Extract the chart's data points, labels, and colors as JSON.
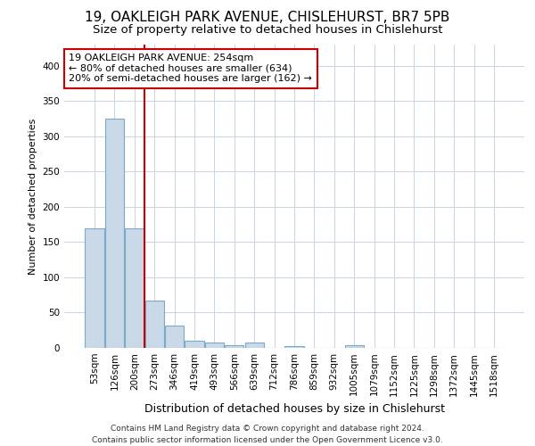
{
  "title": "19, OAKLEIGH PARK AVENUE, CHISLEHURST, BR7 5PB",
  "subtitle": "Size of property relative to detached houses in Chislehurst",
  "xlabel": "Distribution of detached houses by size in Chislehurst",
  "ylabel": "Number of detached properties",
  "categories": [
    "53sqm",
    "126sqm",
    "200sqm",
    "273sqm",
    "346sqm",
    "419sqm",
    "493sqm",
    "566sqm",
    "639sqm",
    "712sqm",
    "786sqm",
    "859sqm",
    "932sqm",
    "1005sqm",
    "1079sqm",
    "1152sqm",
    "1225sqm",
    "1298sqm",
    "1372sqm",
    "1445sqm",
    "1518sqm"
  ],
  "values": [
    170,
    325,
    170,
    67,
    32,
    10,
    8,
    4,
    8,
    0,
    3,
    0,
    0,
    4,
    0,
    0,
    0,
    0,
    0,
    0,
    0
  ],
  "bar_color": "#c9d9e8",
  "bar_edgecolor": "#7aaac8",
  "vline_x_index": 2.5,
  "vline_color": "#cc0000",
  "annotation_text": "19 OAKLEIGH PARK AVENUE: 254sqm\n← 80% of detached houses are smaller (634)\n20% of semi-detached houses are larger (162) →",
  "annotation_box_edgecolor": "#cc0000",
  "annotation_box_facecolor": "#ffffff",
  "ylim": [
    0,
    430
  ],
  "yticks": [
    0,
    50,
    100,
    150,
    200,
    250,
    300,
    350,
    400
  ],
  "footer_text": "Contains HM Land Registry data © Crown copyright and database right 2024.\nContains public sector information licensed under the Open Government Licence v3.0.",
  "title_fontsize": 11,
  "subtitle_fontsize": 9.5,
  "xlabel_fontsize": 9,
  "ylabel_fontsize": 8,
  "tick_fontsize": 7.5,
  "annotation_fontsize": 8,
  "footer_fontsize": 6.5,
  "background_color": "#ffffff",
  "grid_color": "#c8d4e4"
}
